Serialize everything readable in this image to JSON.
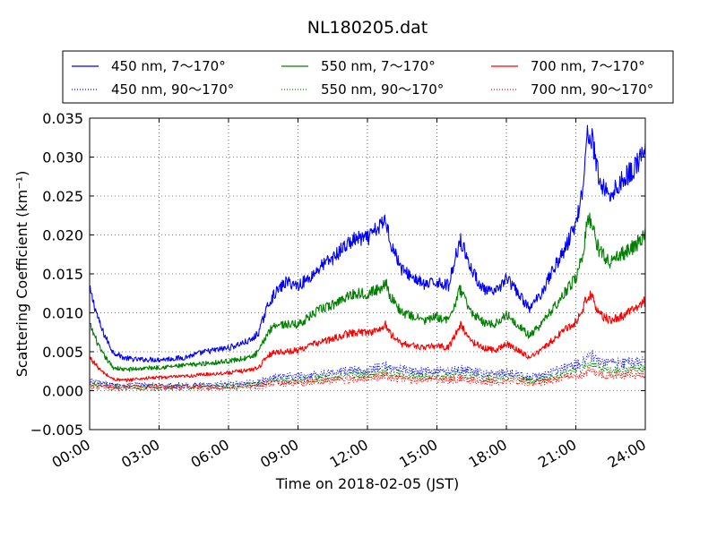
{
  "chart_data": {
    "type": "line",
    "title": "NL180205.dat",
    "xlabel": "Time on 2018-02-05 (JST)",
    "ylabel": "Scattering Coefficient (km⁻¹)",
    "xlim": [
      "00:00",
      "24:00"
    ],
    "ylim": [
      -0.005,
      0.035
    ],
    "grid": true,
    "legend_position": "top, above plot",
    "x_ticks": [
      "00:00",
      "03:00",
      "06:00",
      "09:00",
      "12:00",
      "15:00",
      "18:00",
      "21:00",
      "24:00"
    ],
    "y_ticks": [
      "−0.005",
      "0.000",
      "0.005",
      "0.010",
      "0.015",
      "0.020",
      "0.025",
      "0.030",
      "0.035"
    ],
    "x_hours": [
      0,
      0.5,
      1,
      1.5,
      2,
      3,
      4,
      5,
      6,
      7,
      7.3,
      7.7,
      8,
      8.5,
      9,
      9.5,
      10,
      10.5,
      11,
      11.5,
      12,
      12.5,
      12.8,
      13,
      13.5,
      14,
      14.5,
      15,
      15.5,
      16,
      16.5,
      17,
      17.5,
      18,
      18.5,
      19,
      19.5,
      20,
      20.5,
      21,
      21.3,
      21.5,
      21.7,
      22,
      22.5,
      23,
      23.5,
      24
    ],
    "series": [
      {
        "name": "450 nm, 7～170°",
        "color": "#0000ff",
        "style": "solid",
        "values": [
          0.013,
          0.008,
          0.005,
          0.0042,
          0.004,
          0.004,
          0.0042,
          0.005,
          0.0055,
          0.0065,
          0.0075,
          0.011,
          0.0125,
          0.014,
          0.0135,
          0.0145,
          0.016,
          0.017,
          0.0185,
          0.0195,
          0.0195,
          0.021,
          0.022,
          0.019,
          0.0155,
          0.0145,
          0.0135,
          0.014,
          0.0135,
          0.0195,
          0.0155,
          0.013,
          0.0125,
          0.0145,
          0.0125,
          0.0105,
          0.0125,
          0.0155,
          0.018,
          0.0215,
          0.026,
          0.033,
          0.0325,
          0.027,
          0.025,
          0.027,
          0.0285,
          0.031
        ]
      },
      {
        "name": "550 nm, 7～170°",
        "color": "#008000",
        "style": "solid",
        "values": [
          0.0085,
          0.005,
          0.003,
          0.0027,
          0.0028,
          0.003,
          0.0032,
          0.0035,
          0.0038,
          0.0043,
          0.005,
          0.0075,
          0.0085,
          0.0085,
          0.0085,
          0.0095,
          0.0105,
          0.011,
          0.012,
          0.0125,
          0.0125,
          0.013,
          0.014,
          0.012,
          0.01,
          0.0095,
          0.009,
          0.0095,
          0.009,
          0.013,
          0.01,
          0.0088,
          0.0085,
          0.0098,
          0.0085,
          0.007,
          0.0085,
          0.0105,
          0.0125,
          0.0145,
          0.0175,
          0.022,
          0.0215,
          0.018,
          0.0165,
          0.0175,
          0.0185,
          0.02
        ]
      },
      {
        "name": "700 nm, 7～170°",
        "color": "#ff0000",
        "style": "solid",
        "values": [
          0.0043,
          0.0025,
          0.0015,
          0.0013,
          0.0015,
          0.0017,
          0.0018,
          0.0021,
          0.0023,
          0.0027,
          0.003,
          0.0045,
          0.005,
          0.005,
          0.0052,
          0.0058,
          0.0063,
          0.0066,
          0.0072,
          0.0075,
          0.0075,
          0.0078,
          0.0085,
          0.0072,
          0.006,
          0.0058,
          0.0055,
          0.0058,
          0.0055,
          0.0085,
          0.0063,
          0.0055,
          0.0052,
          0.006,
          0.0052,
          0.0043,
          0.0052,
          0.0065,
          0.0078,
          0.0088,
          0.0105,
          0.0123,
          0.012,
          0.0098,
          0.009,
          0.0095,
          0.0105,
          0.0115
        ]
      },
      {
        "name": "450 nm, 90～170°",
        "color": "#0000ff",
        "style": "dotted",
        "values": [
          0.0012,
          0.0009,
          0.0007,
          0.0007,
          0.0007,
          0.0006,
          0.0006,
          0.0007,
          0.0008,
          0.0009,
          0.001,
          0.0014,
          0.0016,
          0.0018,
          0.0018,
          0.002,
          0.0022,
          0.0023,
          0.0025,
          0.0026,
          0.0027,
          0.0029,
          0.0032,
          0.003,
          0.0027,
          0.0025,
          0.0024,
          0.0025,
          0.0024,
          0.0028,
          0.0025,
          0.0022,
          0.0021,
          0.0023,
          0.0021,
          0.0017,
          0.0019,
          0.0024,
          0.0029,
          0.0034,
          0.0038,
          0.0044,
          0.0045,
          0.0038,
          0.0035,
          0.0036,
          0.0038,
          0.0037
        ]
      },
      {
        "name": "550 nm, 90～170°",
        "color": "#008000",
        "style": "dotted",
        "values": [
          0.0009,
          0.0007,
          0.0005,
          0.0005,
          0.0005,
          0.0005,
          0.0005,
          0.0006,
          0.0006,
          0.0007,
          0.0008,
          0.0011,
          0.0012,
          0.0013,
          0.0013,
          0.0015,
          0.0016,
          0.0017,
          0.0019,
          0.002,
          0.0021,
          0.0022,
          0.0025,
          0.0023,
          0.002,
          0.0019,
          0.0018,
          0.0019,
          0.0018,
          0.0021,
          0.0019,
          0.0016,
          0.0016,
          0.0017,
          0.0016,
          0.0013,
          0.0014,
          0.0018,
          0.0022,
          0.0026,
          0.0029,
          0.0033,
          0.0034,
          0.0029,
          0.0026,
          0.0027,
          0.0029,
          0.0028
        ]
      },
      {
        "name": "700 nm, 90～170°",
        "color": "#ff0000",
        "style": "dotted",
        "values": [
          0.0006,
          0.0005,
          0.0004,
          0.0004,
          0.0004,
          0.0004,
          0.0004,
          0.0004,
          0.0004,
          0.0005,
          0.0006,
          0.0008,
          0.0009,
          0.001,
          0.001,
          0.0011,
          0.0012,
          0.0013,
          0.0014,
          0.0015,
          0.0016,
          0.0017,
          0.0019,
          0.0017,
          0.0015,
          0.0014,
          0.0014,
          0.0014,
          0.0014,
          0.0016,
          0.0014,
          0.0012,
          0.0012,
          0.0013,
          0.0012,
          0.001,
          0.0011,
          0.0014,
          0.0017,
          0.0019,
          0.0021,
          0.0024,
          0.0025,
          0.0021,
          0.0019,
          0.002,
          0.0021,
          0.0021
        ]
      }
    ]
  }
}
